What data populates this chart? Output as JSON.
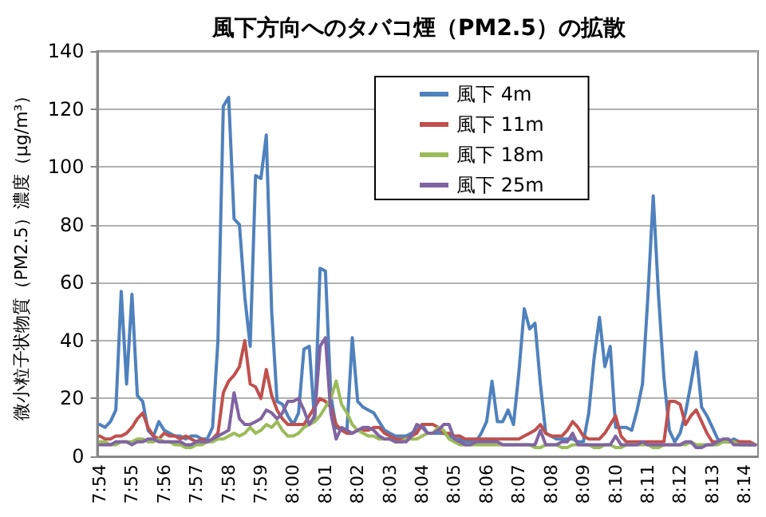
{
  "chart_data": {
    "type": "line",
    "title": "風下方向へのタバコ煙（PM2.5）の拡散",
    "ylabel": "微小粒子状物質（PM2.5）濃度（μg/m³）",
    "categories": [
      "7:54",
      null,
      null,
      null,
      null,
      null,
      "7:55",
      null,
      null,
      null,
      null,
      null,
      "7:56",
      null,
      null,
      null,
      null,
      null,
      "7:57",
      null,
      null,
      null,
      null,
      null,
      "7:58",
      null,
      null,
      null,
      null,
      null,
      "7:59",
      null,
      null,
      null,
      null,
      null,
      "8:00",
      null,
      null,
      null,
      null,
      null,
      "8:01",
      null,
      null,
      null,
      null,
      null,
      "8:02",
      null,
      null,
      null,
      null,
      null,
      "8:03",
      null,
      null,
      null,
      null,
      null,
      "8:04",
      null,
      null,
      null,
      null,
      null,
      "8:05",
      null,
      null,
      null,
      null,
      null,
      "8:06",
      null,
      null,
      null,
      null,
      null,
      "8:07",
      null,
      null,
      null,
      null,
      null,
      "8:08",
      null,
      null,
      null,
      null,
      null,
      "8:09",
      null,
      null,
      null,
      null,
      null,
      "8:10",
      null,
      null,
      null,
      null,
      null,
      "8:11",
      null,
      null,
      null,
      null,
      null,
      "8:12",
      null,
      null,
      null,
      null,
      null,
      "8:13",
      null,
      null,
      null,
      null,
      null,
      "8:14",
      null,
      null
    ],
    "series": [
      {
        "name": "風下 4m",
        "color": "#4f81bd",
        "values": [
          11,
          10,
          12,
          16,
          57,
          25,
          56,
          21,
          19,
          9,
          7,
          12,
          9,
          8,
          7,
          7,
          6,
          7,
          7,
          6,
          6,
          10,
          40,
          121,
          124,
          82,
          80,
          55,
          38,
          97,
          96,
          111,
          50,
          19,
          18,
          14,
          11,
          15,
          37,
          38,
          12,
          65,
          64,
          21,
          10,
          9,
          9,
          41,
          19,
          17,
          16,
          15,
          12,
          9,
          8,
          7,
          7,
          7,
          8,
          9,
          11,
          8,
          8,
          8,
          8,
          7,
          6,
          6,
          5,
          5,
          5,
          8,
          12,
          26,
          12,
          12,
          16,
          11,
          29,
          51,
          44,
          46,
          25,
          8,
          7,
          6,
          6,
          6,
          6,
          5,
          5,
          15,
          34,
          48,
          31,
          38,
          10,
          10,
          10,
          9,
          16,
          25,
          55,
          90,
          55,
          27,
          9,
          5,
          8,
          15,
          25,
          36,
          17,
          14,
          10,
          6,
          5,
          5,
          6,
          5,
          5,
          4,
          4
        ]
      },
      {
        "name": "風下 11m",
        "color": "#c0504d",
        "values": [
          7,
          6,
          6,
          7,
          7,
          8,
          10,
          13,
          15,
          10,
          7,
          6,
          8,
          7,
          7,
          6,
          7,
          6,
          5,
          6,
          5,
          6,
          8,
          22,
          26,
          28,
          31,
          40,
          25,
          24,
          20,
          30,
          21,
          16,
          13,
          11,
          11,
          11,
          11,
          14,
          17,
          20,
          19,
          17,
          11,
          9,
          8,
          8,
          9,
          9,
          9,
          10,
          10,
          8,
          7,
          6,
          6,
          6,
          7,
          8,
          11,
          11,
          11,
          10,
          8,
          8,
          7,
          7,
          6,
          6,
          6,
          6,
          6,
          6,
          6,
          6,
          6,
          6,
          6,
          7,
          8,
          9,
          11,
          8,
          7,
          7,
          7,
          9,
          12,
          10,
          7,
          6,
          6,
          6,
          8,
          11,
          14,
          7,
          5,
          5,
          5,
          5,
          5,
          5,
          5,
          5,
          19,
          19,
          18,
          11,
          14,
          16,
          12,
          8,
          5,
          5,
          5,
          5,
          5,
          5,
          5,
          5,
          4
        ]
      },
      {
        "name": "風下 18m",
        "color": "#9bbb59",
        "values": [
          5,
          5,
          4,
          4,
          5,
          5,
          5,
          6,
          6,
          5,
          5,
          6,
          5,
          5,
          4,
          4,
          3,
          3,
          4,
          4,
          5,
          5,
          6,
          6,
          7,
          8,
          7,
          8,
          10,
          8,
          9,
          11,
          10,
          12,
          9,
          7,
          7,
          8,
          10,
          11,
          12,
          14,
          17,
          20,
          26,
          18,
          15,
          11,
          9,
          8,
          7,
          7,
          6,
          6,
          6,
          5,
          5,
          6,
          6,
          6,
          7,
          8,
          8,
          10,
          9,
          6,
          5,
          4,
          4,
          4,
          4,
          4,
          4,
          4,
          4,
          4,
          4,
          4,
          4,
          4,
          4,
          3,
          3,
          4,
          4,
          4,
          3,
          3,
          4,
          4,
          4,
          4,
          3,
          3,
          4,
          4,
          3,
          3,
          4,
          4,
          4,
          4,
          4,
          3,
          3,
          4,
          4,
          4,
          4,
          4,
          5,
          4,
          4,
          4,
          4,
          4,
          5,
          5,
          5,
          4,
          4,
          4,
          4
        ]
      },
      {
        "name": "風下 25m",
        "color": "#8064a2",
        "values": [
          4,
          4,
          4,
          5,
          5,
          5,
          4,
          5,
          5,
          6,
          6,
          5,
          5,
          5,
          5,
          5,
          4,
          4,
          5,
          5,
          5,
          6,
          7,
          8,
          9,
          22,
          13,
          11,
          11,
          12,
          13,
          16,
          15,
          13,
          15,
          19,
          19,
          20,
          16,
          11,
          14,
          38,
          41,
          15,
          6,
          10,
          9,
          8,
          9,
          10,
          10,
          9,
          7,
          6,
          6,
          5,
          5,
          5,
          7,
          11,
          10,
          8,
          8,
          9,
          11,
          11,
          6,
          5,
          4,
          4,
          5,
          5,
          5,
          5,
          5,
          4,
          4,
          4,
          4,
          4,
          4,
          4,
          9,
          4,
          4,
          4,
          5,
          5,
          8,
          4,
          4,
          4,
          4,
          4,
          4,
          4,
          7,
          4,
          4,
          4,
          4,
          5,
          4,
          4,
          4,
          4,
          4,
          4,
          4,
          5,
          5,
          3,
          3,
          4,
          4,
          5,
          6,
          6,
          4,
          4,
          4,
          4,
          4
        ]
      }
    ],
    "ylim": [
      0,
      140
    ],
    "yticks": [
      0,
      20,
      40,
      60,
      80,
      100,
      120,
      140
    ],
    "grid": "y",
    "legend": "top",
    "marker": "none"
  }
}
